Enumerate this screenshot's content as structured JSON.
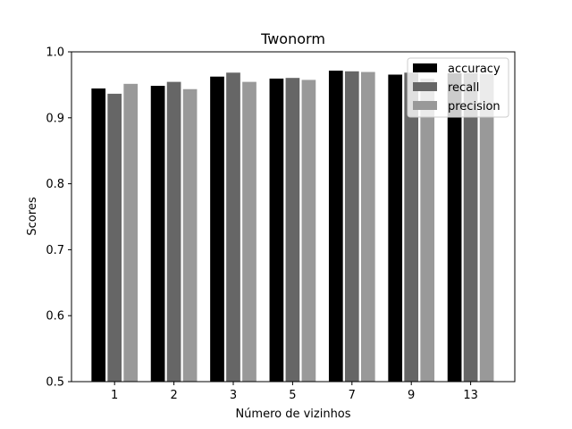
{
  "chart_data": {
    "type": "bar",
    "title": "Twonorm",
    "xlabel": "Número de vizinhos",
    "ylabel": "Scores",
    "categories": [
      "1",
      "2",
      "3",
      "5",
      "7",
      "9",
      "13"
    ],
    "ylim": [
      0.5,
      1.0
    ],
    "yticks": [
      "0.5",
      "0.6",
      "0.7",
      "0.8",
      "0.9",
      "1.0"
    ],
    "legend_position": "top-right",
    "grid": false,
    "series": [
      {
        "name": "accuracy",
        "color": "#000000",
        "values": [
          0.945,
          0.949,
          0.963,
          0.96,
          0.972,
          0.966,
          0.968
        ]
      },
      {
        "name": "recall",
        "color": "#666666",
        "values": [
          0.937,
          0.955,
          0.969,
          0.961,
          0.971,
          0.969,
          0.968
        ]
      },
      {
        "name": "precision",
        "color": "#999999",
        "values": [
          0.952,
          0.944,
          0.955,
          0.958,
          0.97,
          0.96,
          0.967
        ]
      }
    ]
  }
}
